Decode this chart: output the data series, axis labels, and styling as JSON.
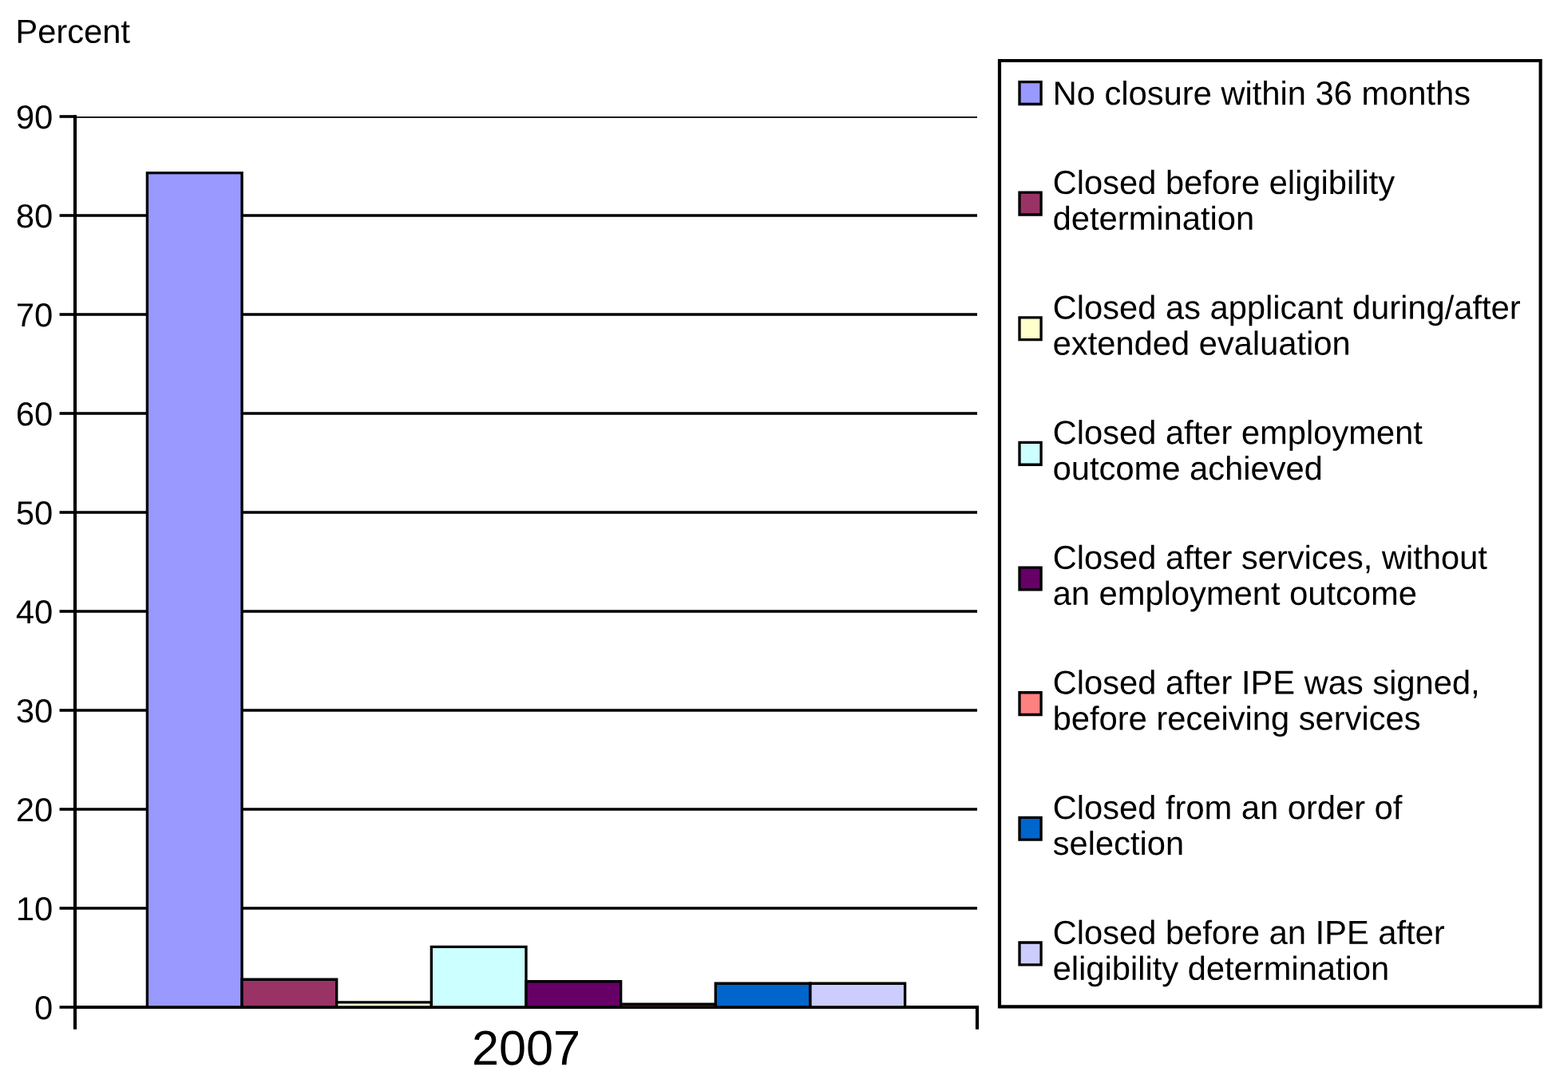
{
  "chart_data": {
    "type": "bar",
    "ylabel": "Percent",
    "categories": [
      "2007"
    ],
    "series": [
      {
        "name": "No closure within 36 months",
        "color": "#9999ff",
        "values": [
          84.3
        ]
      },
      {
        "name": "Closed before eligibility\ndetermination",
        "color": "#993366",
        "values": [
          2.8
        ]
      },
      {
        "name": "Closed as applicant during/after\nextended evaluation",
        "color": "#ffffcc",
        "values": [
          0.5
        ]
      },
      {
        "name": "Closed after employment\noutcome achieved",
        "color": "#ccffff",
        "values": [
          6.1
        ]
      },
      {
        "name": "Closed after services, without\nan employment outcome",
        "color": "#660066",
        "values": [
          2.6
        ]
      },
      {
        "name": "Closed after IPE was signed,\nbefore receiving services",
        "color": "#ff8080",
        "values": [
          0.3
        ]
      },
      {
        "name": "Closed from an order of\nselection",
        "color": "#0066cc",
        "values": [
          2.4
        ]
      },
      {
        "name": "Closed before an IPE after\neligibility determination",
        "color": "#ccccff",
        "values": [
          2.4
        ]
      }
    ],
    "ylim": [
      0,
      90
    ],
    "yticks": [
      0,
      10,
      20,
      30,
      40,
      50,
      60,
      70,
      80,
      90
    ],
    "grid": "y",
    "legend": "right"
  }
}
